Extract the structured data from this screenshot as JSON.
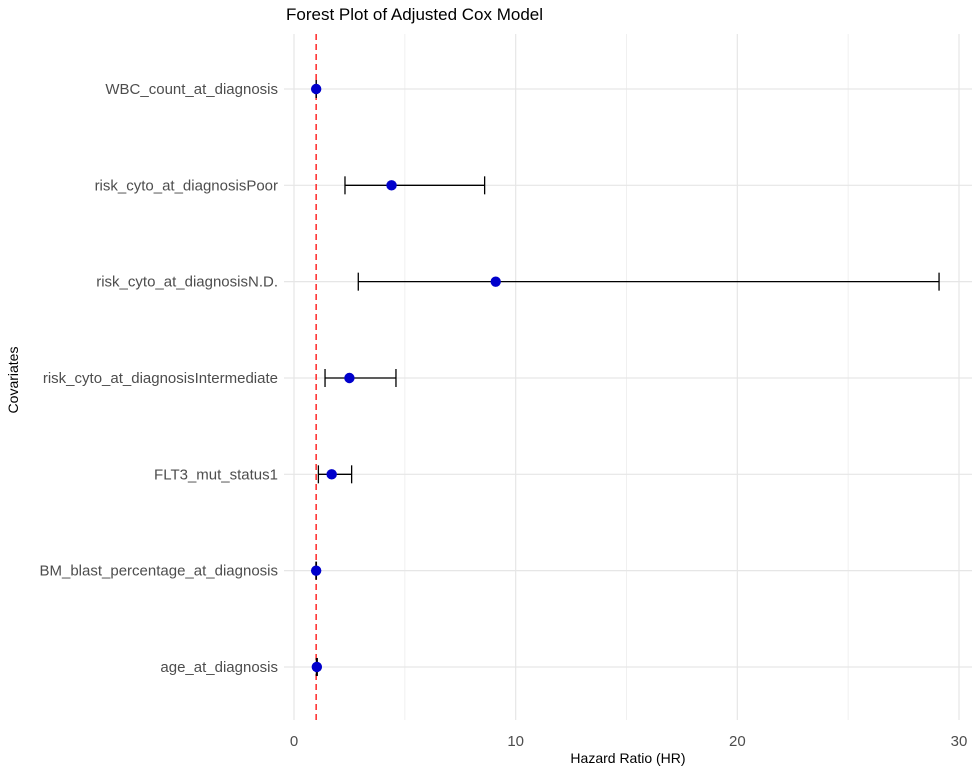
{
  "chart_data": {
    "type": "forest",
    "title": "Forest Plot of Adjusted Cox Model",
    "xlabel": "Hazard Ratio (HR)",
    "ylabel": "Covariates",
    "xlim": [
      -0.7,
      30.7
    ],
    "xticks": [
      0,
      10,
      20,
      30
    ],
    "reference_line": {
      "x": 1,
      "color": "#ff3333",
      "style": "dashed"
    },
    "point_color": "#0000cc",
    "errorbar_color": "#000000",
    "grid": true,
    "rows": [
      {
        "label": "WBC_count_at_diagnosis",
        "hr": 1.0,
        "lower": 1.0,
        "upper": 1.0
      },
      {
        "label": "risk_cyto_at_diagnosisPoor",
        "hr": 4.4,
        "lower": 2.3,
        "upper": 8.6
      },
      {
        "label": "risk_cyto_at_diagnosisN.D.",
        "hr": 9.1,
        "lower": 2.9,
        "upper": 29.1
      },
      {
        "label": "risk_cyto_at_diagnosisIntermediate",
        "hr": 2.5,
        "lower": 1.4,
        "upper": 4.6
      },
      {
        "label": "FLT3_mut_status1",
        "hr": 1.7,
        "lower": 1.1,
        "upper": 2.6
      },
      {
        "label": "BM_blast_percentage_at_diagnosis",
        "hr": 1.0,
        "lower": 0.99,
        "upper": 1.01
      },
      {
        "label": "age_at_diagnosis",
        "hr": 1.03,
        "lower": 1.01,
        "upper": 1.05
      }
    ]
  }
}
